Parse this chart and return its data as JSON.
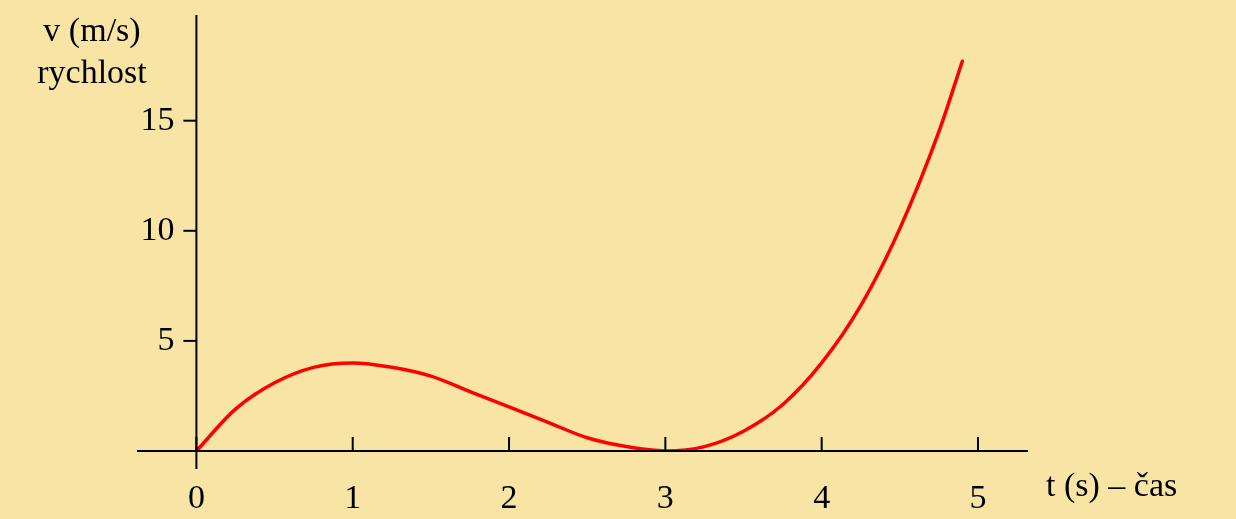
{
  "chart_data": {
    "type": "line",
    "xlabel": "t (s) – čas",
    "ylabel": "v (m/s)\nrychlost",
    "x": [
      0,
      0.25,
      0.5,
      0.75,
      1,
      1.25,
      1.5,
      1.75,
      2,
      2.25,
      2.5,
      2.75,
      3,
      3.25,
      3.5,
      3.75,
      4,
      4.25,
      4.5,
      4.75,
      4.9
    ],
    "series": [
      {
        "color": "#ff0000",
        "values": [
          0,
          1.9,
          3.1,
          3.8,
          4,
          3.8,
          3.4,
          2.7,
          2,
          1.3,
          0.6,
          0.2,
          0,
          0.2,
          0.9,
          2.1,
          4,
          6.6,
          10.1,
          14.5,
          17.7
        ]
      }
    ],
    "xlim": [
      -0.38,
      5.32
    ],
    "ylim": [
      0,
      19.8
    ],
    "xticks": [
      0,
      1,
      2,
      3,
      4,
      5
    ],
    "yticks": [
      5,
      10,
      15
    ],
    "legend": false,
    "marker": "none",
    "line_style": "solid"
  }
}
